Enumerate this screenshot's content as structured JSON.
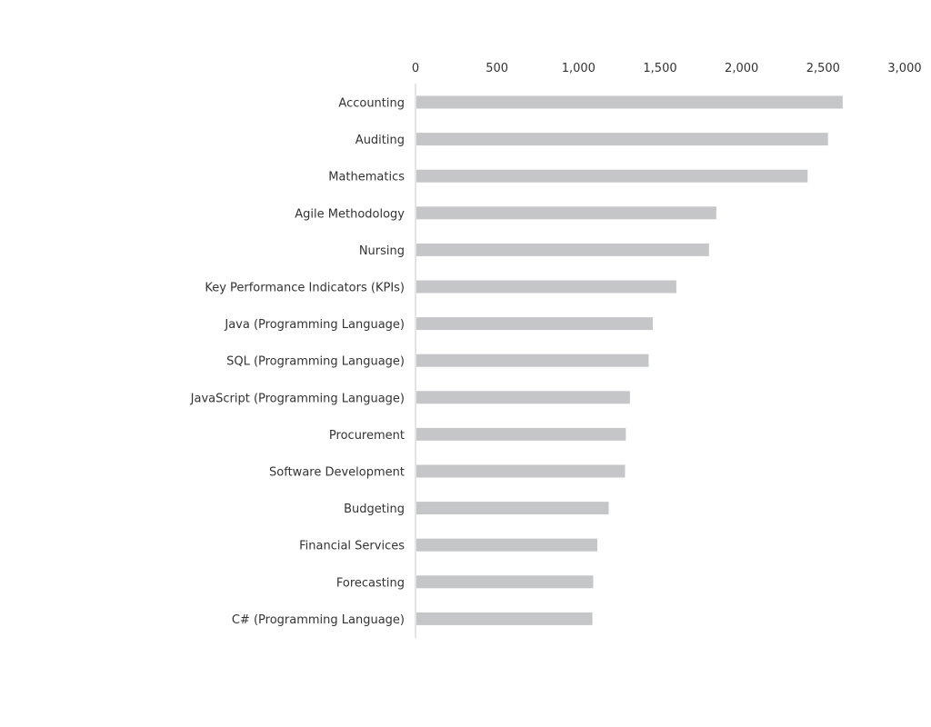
{
  "chart_data": {
    "type": "bar",
    "orientation": "horizontal",
    "categories": [
      "Accounting",
      "Auditing",
      "Mathematics",
      "Agile Methodology",
      "Nursing",
      "Key Performance Indicators (KPIs)",
      "Java (Programming Language)",
      "SQL (Programming Language)",
      "JavaScript (Programming Language)",
      "Procurement",
      "Software Development",
      "Budgeting",
      "Financial Services",
      "Forecasting",
      "C# (Programming Language)"
    ],
    "values": [
      2620,
      2530,
      2405,
      1845,
      1800,
      1600,
      1455,
      1430,
      1315,
      1290,
      1285,
      1185,
      1115,
      1090,
      1085
    ],
    "xticks": [
      "0",
      "500",
      "1,000",
      "1,500",
      "2,000",
      "2,500",
      "3,000"
    ],
    "xlim": [
      0,
      3000
    ],
    "title": "",
    "xlabel": "",
    "ylabel": "",
    "grid": false,
    "legend": "none",
    "colors": {
      "bar": "#c4c6c8",
      "axis": "#c8c8c8",
      "text": "#333333"
    }
  }
}
